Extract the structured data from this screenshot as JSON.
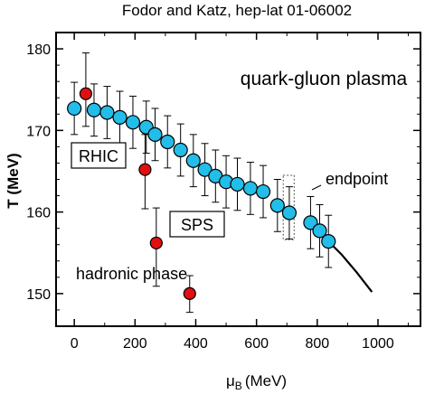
{
  "chart_data": {
    "type": "scatter",
    "title": "Fodor and Katz, hep-lat 01-06002",
    "xlabel": "μ",
    "xlabel_sub": "B",
    "xlabel_unit": "(MeV)",
    "ylabel": "T (MeV)",
    "xlim": [
      -60,
      1140
    ],
    "ylim": [
      146,
      182
    ],
    "x_ticks": [
      0,
      200,
      400,
      600,
      800,
      1000
    ],
    "y_ticks": [
      150,
      160,
      170,
      180
    ],
    "series": [
      {
        "marker": "cyan-circle",
        "color": "#22bde8",
        "points": [
          {
            "x": 0,
            "y": 172.7,
            "err": 3.2
          },
          {
            "x": 65,
            "y": 172.5,
            "err": 3.2
          },
          {
            "x": 108,
            "y": 172.2,
            "err": 3.2
          },
          {
            "x": 150,
            "y": 171.6,
            "err": 3.2
          },
          {
            "x": 193,
            "y": 171.0,
            "err": 3.2
          },
          {
            "x": 237,
            "y": 170.4,
            "err": 3.2
          },
          {
            "x": 266,
            "y": 169.5,
            "err": 3.2
          },
          {
            "x": 307,
            "y": 168.6,
            "err": 3.2
          },
          {
            "x": 350,
            "y": 167.6,
            "err": 3.2
          },
          {
            "x": 392,
            "y": 166.3,
            "err": 3.2
          },
          {
            "x": 430,
            "y": 165.2,
            "err": 3.2
          },
          {
            "x": 465,
            "y": 164.4,
            "err": 3.2
          },
          {
            "x": 500,
            "y": 163.7,
            "err": 3.2
          },
          {
            "x": 537,
            "y": 163.4,
            "err": 3.2
          },
          {
            "x": 580,
            "y": 162.9,
            "err": 3.2
          },
          {
            "x": 622,
            "y": 162.5,
            "err": 3.2
          },
          {
            "x": 669,
            "y": 160.8,
            "err": 3.2
          },
          {
            "x": 708,
            "y": 159.9,
            "err": 3.2
          },
          {
            "x": 778,
            "y": 158.7,
            "err": 3.2
          },
          {
            "x": 808,
            "y": 157.7,
            "err": 3.2
          },
          {
            "x": 837,
            "y": 156.4,
            "err": 3.2
          }
        ]
      },
      {
        "marker": "red-circle",
        "color": "#e01010",
        "points": [
          {
            "x": 38,
            "y": 174.5,
            "err_up": 5.0,
            "err_down": 4.0
          },
          {
            "x": 233,
            "y": 165.2,
            "err_up": 4.3,
            "err_down": 4.8
          },
          {
            "x": 270,
            "y": 156.2,
            "err_up": 4.3,
            "err_down": 5.3
          },
          {
            "x": 380,
            "y": 150.0,
            "err_up": 2.2,
            "err_down": 2.3
          }
        ]
      }
    ],
    "line": {
      "x": [
        837,
        880,
        930,
        980
      ],
      "y": [
        156.4,
        154.8,
        152.6,
        150.2
      ]
    },
    "endpoint_box": {
      "x": [
        688,
        724
      ],
      "y": [
        156.6,
        164.5
      ]
    },
    "annotations": {
      "qgp": "quark-gluon plasma",
      "rhic": "RHIC",
      "sps": "SPS",
      "endpoint": "endpoint",
      "hadronic": "hadronic phase"
    },
    "grid": false,
    "legend": "none"
  }
}
